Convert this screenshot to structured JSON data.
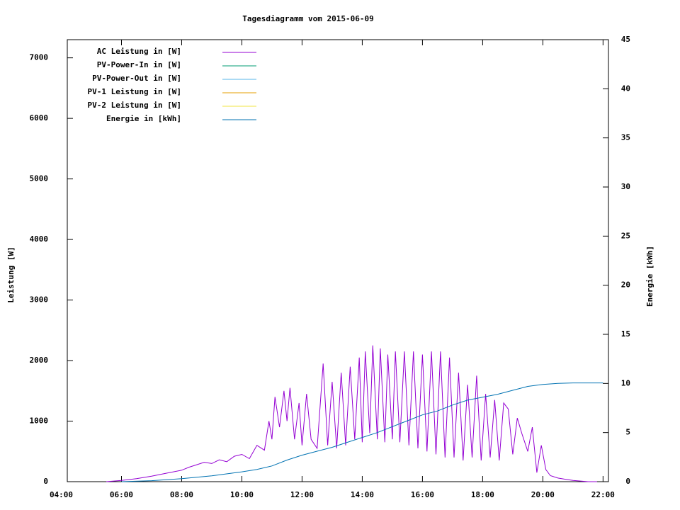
{
  "chart_data": {
    "type": "line",
    "title": "Tagesdiagramm vom 2015-06-09",
    "ylabel": "Leistung [W]",
    "y2label": "Energie [kWh]",
    "xlim": [
      4.2,
      22.18
    ],
    "xticks": [
      {
        "value": 4,
        "label": "04:00"
      },
      {
        "value": 6,
        "label": "06:00"
      },
      {
        "value": 8,
        "label": "08:00"
      },
      {
        "value": 10,
        "label": "10:00"
      },
      {
        "value": 12,
        "label": "12:00"
      },
      {
        "value": 14,
        "label": "14:00"
      },
      {
        "value": 16,
        "label": "16:00"
      },
      {
        "value": 18,
        "label": "18:00"
      },
      {
        "value": 20,
        "label": "20:00"
      },
      {
        "value": 22,
        "label": "22:00"
      }
    ],
    "ylim": [
      0,
      7300
    ],
    "yticks": [
      0,
      1000,
      2000,
      3000,
      4000,
      5000,
      6000,
      7000
    ],
    "y2lim": [
      0,
      45
    ],
    "y2ticks": [
      0,
      5,
      10,
      15,
      20,
      25,
      30,
      35,
      40,
      45
    ],
    "legend": "top-left",
    "series": [
      {
        "name": "AC Leistung in [W]",
        "color": "#9400d3",
        "x": [
          5.5,
          6.0,
          6.5,
          7.0,
          7.5,
          8.0,
          8.25,
          8.5,
          8.75,
          9.0,
          9.25,
          9.5,
          9.75,
          10.0,
          10.25,
          10.5,
          10.75,
          10.9,
          11.0,
          11.1,
          11.25,
          11.4,
          11.5,
          11.6,
          11.75,
          11.9,
          12.0,
          12.15,
          12.3,
          12.5,
          12.7,
          12.85,
          13.0,
          13.15,
          13.3,
          13.45,
          13.6,
          13.75,
          13.9,
          14.0,
          14.1,
          14.25,
          14.35,
          14.5,
          14.6,
          14.75,
          14.85,
          15.0,
          15.1,
          15.25,
          15.4,
          15.55,
          15.7,
          15.85,
          16.0,
          16.15,
          16.3,
          16.45,
          16.6,
          16.75,
          16.9,
          17.05,
          17.2,
          17.35,
          17.5,
          17.65,
          17.8,
          17.95,
          18.1,
          18.25,
          18.4,
          18.55,
          18.7,
          18.85,
          19.0,
          19.15,
          19.3,
          19.5,
          19.65,
          19.8,
          19.95,
          20.1,
          20.25,
          20.5,
          20.75,
          21.0,
          21.5,
          21.8
        ],
        "values": [
          0,
          20,
          50,
          90,
          140,
          190,
          240,
          280,
          320,
          300,
          360,
          330,
          420,
          450,
          380,
          600,
          520,
          1000,
          700,
          1400,
          900,
          1500,
          1000,
          1550,
          700,
          1300,
          600,
          1450,
          700,
          550,
          1950,
          600,
          1650,
          550,
          1800,
          600,
          1900,
          700,
          2050,
          650,
          2150,
          800,
          2250,
          700,
          2200,
          650,
          2100,
          700,
          2150,
          650,
          2150,
          600,
          2150,
          550,
          2100,
          500,
          2150,
          450,
          2150,
          400,
          2050,
          400,
          1800,
          350,
          1600,
          400,
          1750,
          350,
          1450,
          400,
          1350,
          350,
          1300,
          1200,
          450,
          1050,
          800,
          500,
          900,
          150,
          600,
          200,
          100,
          60,
          40,
          20,
          0,
          0
        ]
      },
      {
        "name": "PV-Power-In in [W]",
        "color": "#009e73",
        "x": [],
        "values": []
      },
      {
        "name": "PV-Power-Out in [W]",
        "color": "#56b4e9",
        "x": [],
        "values": []
      },
      {
        "name": "PV-1 Leistung in [W]",
        "color": "#e69f00",
        "x": [],
        "values": []
      },
      {
        "name": "PV-2 Leistung in [W]",
        "color": "#f0e442",
        "x": [],
        "values": []
      },
      {
        "name": "Energie in [kWh]",
        "color": "#0072b2",
        "axis": "y2",
        "x": [
          6.0,
          7,
          8,
          9,
          10,
          10.5,
          11,
          11.5,
          12,
          12.5,
          13,
          13.5,
          14,
          14.5,
          15,
          15.5,
          16,
          16.5,
          17,
          17.5,
          18,
          18.5,
          19,
          19.5,
          20,
          20.5,
          21,
          22
        ],
        "values": [
          0,
          0.1,
          0.3,
          0.6,
          1.0,
          1.25,
          1.6,
          2.2,
          2.7,
          3.1,
          3.5,
          4.0,
          4.5,
          5.0,
          5.6,
          6.2,
          6.8,
          7.2,
          7.8,
          8.3,
          8.6,
          8.9,
          9.3,
          9.7,
          9.9,
          10.0,
          10.05,
          10.05
        ]
      }
    ]
  }
}
